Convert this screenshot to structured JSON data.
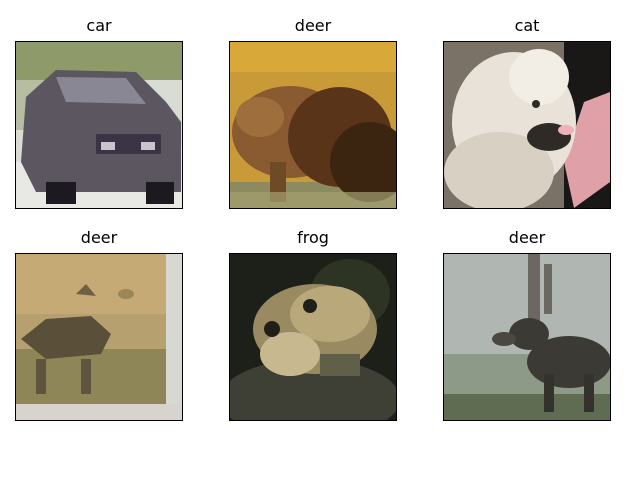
{
  "figure": {
    "panels": [
      {
        "title": "car",
        "palette": [
          "#5b5660",
          "#d6d4cc",
          "#3a3445",
          "#8a8f6a"
        ]
      },
      {
        "title": "deer",
        "palette": [
          "#8a5a30",
          "#c8a040",
          "#3b2410",
          "#6e4a26"
        ]
      },
      {
        "title": "cat",
        "palette": [
          "#e8e2d8",
          "#2e2a26",
          "#b8a48c",
          "#f0b0b8"
        ]
      },
      {
        "title": "deer",
        "palette": [
          "#a89868",
          "#6e6a48",
          "#d0c09a",
          "#5a4f38"
        ]
      },
      {
        "title": "frog",
        "palette": [
          "#1c2018",
          "#9a8a62",
          "#606048",
          "#c8b890"
        ]
      },
      {
        "title": "deer",
        "palette": [
          "#9aa4a0",
          "#3c3a34",
          "#707868",
          "#b8bcb4"
        ]
      }
    ]
  }
}
